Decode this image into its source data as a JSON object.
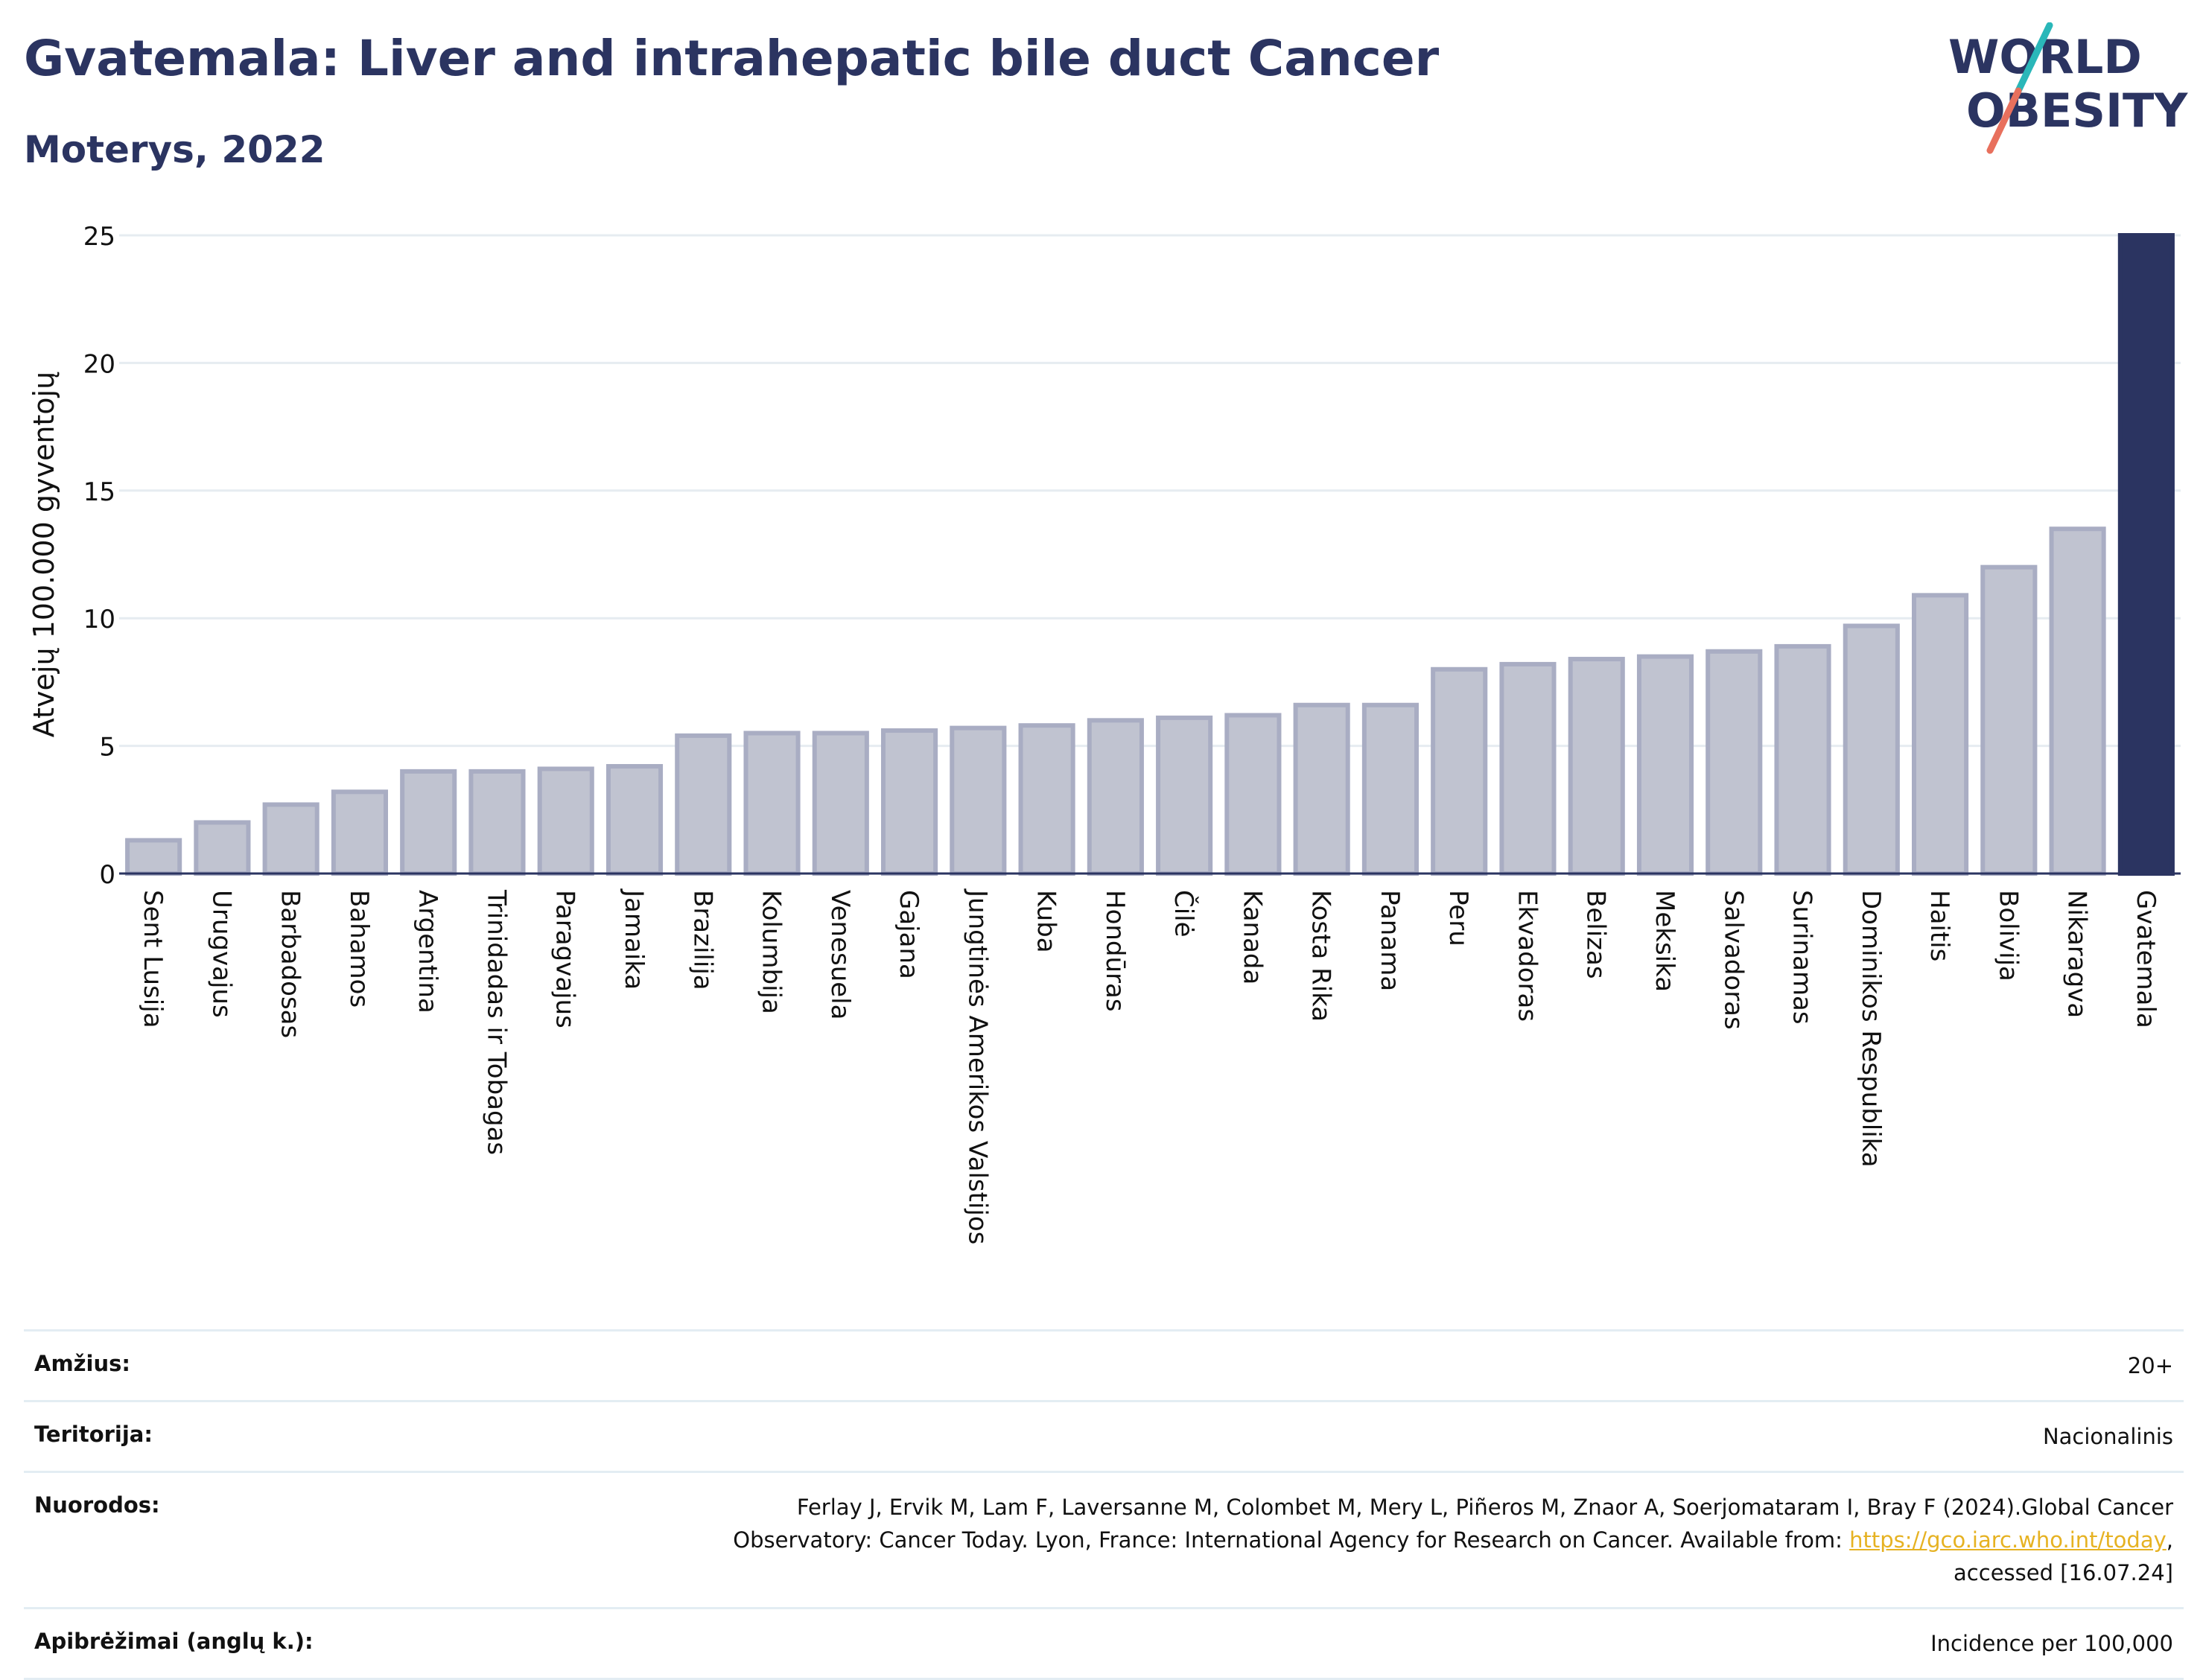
{
  "header": {
    "title": "Gvatemala: Liver and intrahepatic bile duct Cancer",
    "subtitle": "Moterys, 2022"
  },
  "logo": {
    "line1": "WORLD",
    "line2": "OBESITY",
    "colors": {
      "text": "#2b3461",
      "stroke_top": "#2ab7b9",
      "stroke_bottom": "#e8705d"
    }
  },
  "chart_data": {
    "type": "bar",
    "ylabel": "Atvejų 100.000 gyventojų",
    "ylim": [
      0,
      25
    ],
    "yticks": [
      0,
      5,
      10,
      15,
      20,
      25
    ],
    "grid": true,
    "categories": [
      "Sent Lusija",
      "Urugvajus",
      "Barbadosas",
      "Bahamos",
      "Argentina",
      "Trinidadas ir Tobagas",
      "Paragvajus",
      "Jamaika",
      "Brazilija",
      "Kolumbija",
      "Venesuela",
      "Gajana",
      "Jungtinės Amerikos Valstijos",
      "Kuba",
      "Hondūras",
      "Čilė",
      "Kanada",
      "Kosta Rika",
      "Panama",
      "Peru",
      "Ekvadoras",
      "Belizas",
      "Meksika",
      "Salvadoras",
      "Surinamas",
      "Dominikos Respublika",
      "Haitis",
      "Bolivija",
      "Nikaragva",
      "Gvatemala"
    ],
    "values": [
      1.3,
      2.0,
      2.7,
      3.2,
      4.0,
      4.0,
      4.1,
      4.2,
      5.4,
      5.5,
      5.5,
      5.6,
      5.7,
      5.8,
      6.0,
      6.1,
      6.2,
      6.6,
      6.6,
      8.0,
      8.2,
      8.4,
      8.5,
      8.7,
      8.9,
      9.7,
      10.9,
      12.0,
      13.5,
      25.0
    ],
    "highlight": "Gvatemala",
    "colors": {
      "bar": "#c0c3d0",
      "bar_border": "#a9adc3",
      "highlight": "#2b3461"
    }
  },
  "info": {
    "age_label": "Amžius:",
    "age_value": "20+",
    "territory_label": "Teritorija:",
    "territory_value": "Nacionalinis",
    "refs_label": "Nuorodos:",
    "refs_line1": "Ferlay J, Ervik M, Lam F, Laversanne M, Colombet M, Mery L, Piñeros M, Znaor A, Soerjomataram I, Bray F (2024).Global Cancer",
    "refs_line2_pre": "Observatory: Cancer Today. Lyon, France: International Agency for Research on Cancer. Available from: ",
    "refs_link": "https://gco.iarc.who.int/today",
    "refs_line2_post": ",",
    "refs_line3": "accessed [16.07.24]",
    "defs_label": "Apibrėžimai (anglų k.):",
    "defs_value": "Incidence per 100,000"
  }
}
